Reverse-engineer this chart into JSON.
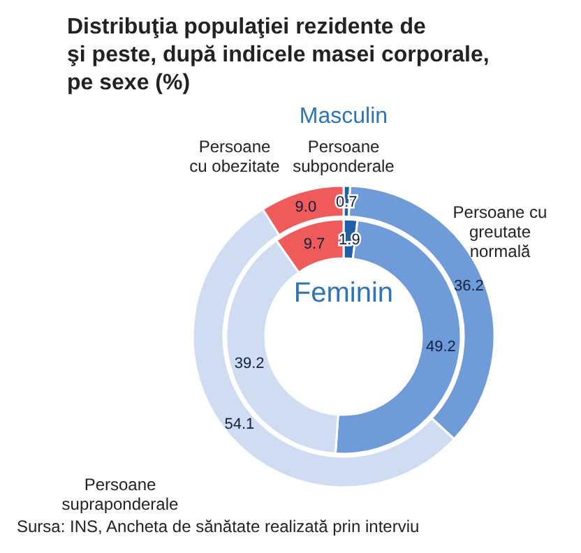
{
  "chart_data": {
    "type": "donut",
    "title": "Distribuţia populaţiei rezidente de\nşi peste, după indicele masei corporale,\npe sexe (%)",
    "categories": [
      "Persoane subponderale",
      "Persoane cu greutate normală",
      "Persoane supraponderale",
      "Persoane cu obezitate"
    ],
    "colors": [
      "#1f5fa8",
      "#6f9bd8",
      "#cfdcf2",
      "#ef5a5a"
    ],
    "series": [
      {
        "name": "Masculin",
        "values": [
          0.7,
          36.2,
          54.1,
          9.0
        ],
        "value_labels": [
          "0.7",
          "36.2",
          "54.1",
          "9.0"
        ]
      },
      {
        "name": "Feminin",
        "values": [
          1.9,
          49.2,
          39.2,
          9.7
        ]
      }
    ],
    "data_labels": true,
    "annotations": [
      "Sursa: INS, Ancheta de sănătate realizată prin interviu"
    ]
  }
}
